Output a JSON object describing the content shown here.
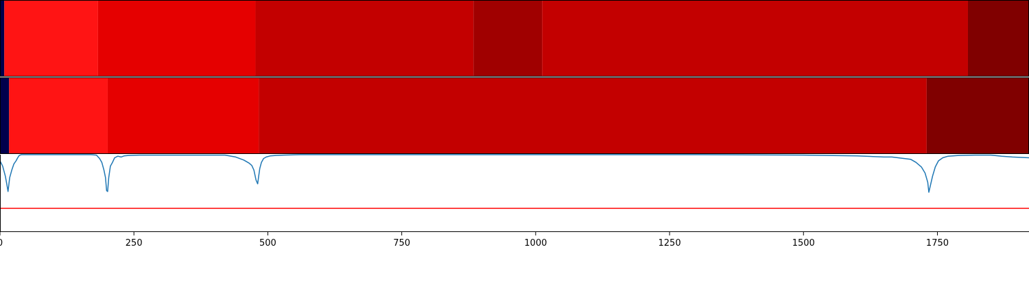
{
  "chart_data": {
    "x_range": [
      0,
      1921
    ],
    "x_ticks": [
      0,
      250,
      500,
      750,
      1000,
      1250,
      1500,
      1750
    ],
    "x_tick_labels": [
      "0",
      "250",
      "500",
      "750",
      "1000",
      "1250",
      "1500",
      "1750"
    ],
    "panels": [
      {
        "type": "heatmap",
        "segments": [
          {
            "start": 0,
            "end": 8,
            "color": "#00004c"
          },
          {
            "start": 8,
            "end": 183,
            "color": "#ff1414"
          },
          {
            "start": 183,
            "end": 477,
            "color": "#e50000"
          },
          {
            "start": 477,
            "end": 884,
            "color": "#c30000"
          },
          {
            "start": 884,
            "end": 1012,
            "color": "#a00000"
          },
          {
            "start": 1012,
            "end": 1807,
            "color": "#c30000"
          },
          {
            "start": 1807,
            "end": 1921,
            "color": "#800000"
          }
        ]
      },
      {
        "type": "heatmap",
        "segments": [
          {
            "start": 0,
            "end": 17,
            "color": "#00004c"
          },
          {
            "start": 17,
            "end": 201,
            "color": "#ff1414"
          },
          {
            "start": 201,
            "end": 483,
            "color": "#e50000"
          },
          {
            "start": 483,
            "end": 1730,
            "color": "#c30000"
          },
          {
            "start": 1730,
            "end": 1921,
            "color": "#800000"
          }
        ]
      },
      {
        "type": "line",
        "ylim": [
          0,
          1
        ],
        "series": [
          {
            "color": "#1f77b4",
            "x": [
              0,
              5,
              10,
              13,
              15,
              18,
              22,
              26,
              30,
              33,
              36,
              40,
              80,
              140,
              170,
              180,
              186,
              190,
              194,
              197,
              199,
              201,
              203,
              206,
              210,
              214,
              220,
              226,
              232,
              240,
              260,
              320,
              380,
              420,
              440,
              455,
              465,
              470,
              474,
              478,
              481,
              483,
              485,
              488,
              492,
              497,
              505,
              515,
              530,
              560,
              700,
              900,
              1100,
              1300,
              1500,
              1600,
              1650,
              1665,
              1700,
              1710,
              1720,
              1727,
              1732,
              1734,
              1737,
              1741,
              1746,
              1752,
              1760,
              1770,
              1790,
              1820,
              1850,
              1870,
              1890,
              1921
            ],
            "y": [
              0.92,
              0.85,
              0.72,
              0.6,
              0.52,
              0.7,
              0.8,
              0.88,
              0.92,
              0.96,
              0.99,
              1.0,
              1.0,
              1.0,
              1.0,
              0.995,
              0.95,
              0.9,
              0.8,
              0.7,
              0.53,
              0.52,
              0.7,
              0.85,
              0.9,
              0.96,
              0.98,
              0.97,
              0.985,
              0.99,
              0.995,
              0.995,
              0.995,
              0.995,
              0.97,
              0.93,
              0.89,
              0.86,
              0.8,
              0.67,
              0.62,
              0.72,
              0.82,
              0.9,
              0.95,
              0.97,
              0.985,
              0.99,
              0.995,
              1.0,
              1.0,
              1.0,
              1.0,
              1.0,
              0.995,
              0.985,
              0.97,
              0.97,
              0.94,
              0.9,
              0.84,
              0.76,
              0.64,
              0.51,
              0.6,
              0.72,
              0.84,
              0.92,
              0.96,
              0.98,
              0.99,
              0.995,
              0.995,
              0.98,
              0.97,
              0.96
            ]
          }
        ],
        "hline": {
          "y": 0.3,
          "color": "#ff0000"
        }
      }
    ]
  }
}
